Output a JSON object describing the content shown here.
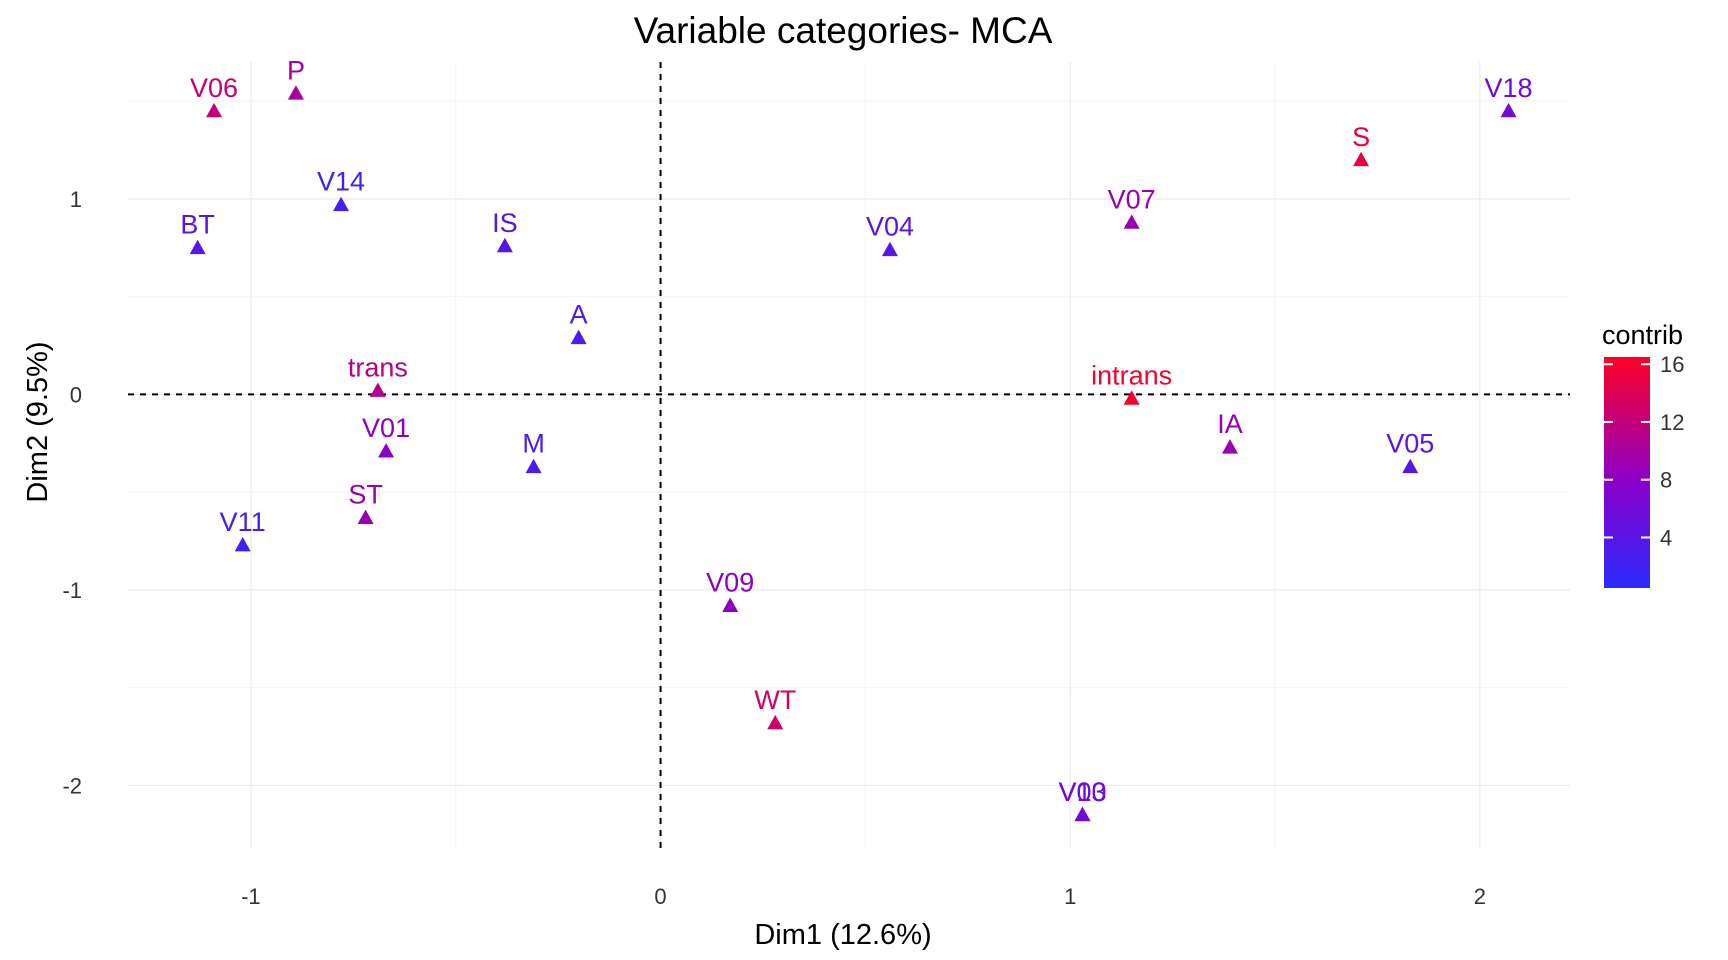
{
  "chart_data": {
    "type": "scatter",
    "title": "Variable categories- MCA",
    "xlabel": "Dim1 (12.6%)",
    "ylabel": "Dim2 (9.5%)",
    "xlim": [
      -1.3,
      2.22
    ],
    "ylim": [
      -2.32,
      1.7
    ],
    "x_ticks": [
      -1,
      0,
      1,
      2
    ],
    "x_tick_labels": [
      "-1",
      "0",
      "1",
      "2"
    ],
    "y_ticks": [
      -2,
      -1,
      0,
      1
    ],
    "y_tick_labels": [
      "-2",
      "-1",
      "0",
      "1"
    ],
    "grid": true,
    "reference_lines": {
      "x": 0,
      "y": 0,
      "style": "dashed"
    },
    "marker": "triangle",
    "legend": {
      "title": "contrib",
      "placement": "right",
      "range": [
        0.5,
        16.5
      ],
      "ticks": [
        4,
        8,
        12,
        16
      ],
      "tick_labels": [
        "4",
        "8",
        "12",
        "16"
      ],
      "colors": {
        "low": "#2b2bff",
        "mid": "#8800cc",
        "high": "#ff0024"
      }
    },
    "points": [
      {
        "label": "V06",
        "x": -1.09,
        "y": 1.45,
        "contrib": 12
      },
      {
        "label": "P",
        "x": -0.89,
        "y": 1.54,
        "contrib": 10
      },
      {
        "label": "V18",
        "x": 2.07,
        "y": 1.45,
        "contrib": 6
      },
      {
        "label": "S",
        "x": 1.71,
        "y": 1.2,
        "contrib": 15
      },
      {
        "label": "V14",
        "x": -0.78,
        "y": 0.97,
        "contrib": 2
      },
      {
        "label": "BT",
        "x": -1.13,
        "y": 0.75,
        "contrib": 4
      },
      {
        "label": "IS",
        "x": -0.38,
        "y": 0.76,
        "contrib": 4
      },
      {
        "label": "V04",
        "x": 0.56,
        "y": 0.74,
        "contrib": 4
      },
      {
        "label": "V07",
        "x": 1.15,
        "y": 0.88,
        "contrib": 9
      },
      {
        "label": "A",
        "x": -0.2,
        "y": 0.29,
        "contrib": 3
      },
      {
        "label": "trans",
        "x": -0.69,
        "y": 0.02,
        "contrib": 11
      },
      {
        "label": "intrans",
        "x": 1.15,
        "y": -0.02,
        "contrib": 16
      },
      {
        "label": "V01",
        "x": -0.67,
        "y": -0.29,
        "contrib": 8
      },
      {
        "label": "M",
        "x": -0.31,
        "y": -0.37,
        "contrib": 3
      },
      {
        "label": "IA",
        "x": 1.39,
        "y": -0.27,
        "contrib": 9
      },
      {
        "label": "V05",
        "x": 1.83,
        "y": -0.37,
        "contrib": 4
      },
      {
        "label": "ST",
        "x": -0.72,
        "y": -0.63,
        "contrib": 9
      },
      {
        "label": "V11",
        "x": -1.02,
        "y": -0.77,
        "contrib": 2
      },
      {
        "label": "V09",
        "x": 0.17,
        "y": -1.08,
        "contrib": 8
      },
      {
        "label": "WT",
        "x": 0.28,
        "y": -1.68,
        "contrib": 13
      },
      {
        "label": "V03",
        "x": 1.03,
        "y": -2.15,
        "contrib": 5
      },
      {
        "label": "V10",
        "x": 1.03,
        "y": -2.15,
        "contrib": 6
      }
    ]
  }
}
